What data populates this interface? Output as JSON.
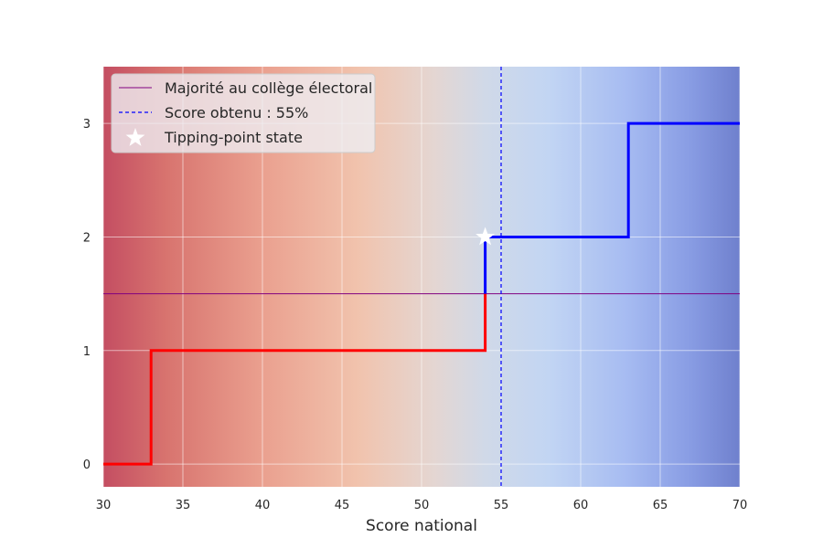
{
  "chart_data": {
    "type": "line",
    "title": "",
    "xlabel": "Score national",
    "ylabel": "",
    "xlim": [
      30,
      70
    ],
    "ylim": [
      -0.2,
      3.5
    ],
    "x_ticks": [
      30,
      35,
      40,
      45,
      50,
      55,
      60,
      65,
      70
    ],
    "y_ticks": [
      0,
      1,
      2,
      3
    ],
    "grid": true,
    "legend_position": "upper-left",
    "background": "diverging red-to-blue gradient along x",
    "series": [
      {
        "style": "step",
        "color": "#ff0000",
        "points": [
          [
            30,
            0
          ],
          [
            33,
            0
          ],
          [
            33,
            1
          ],
          [
            54,
            1
          ],
          [
            54,
            1.5
          ]
        ]
      },
      {
        "style": "step",
        "color": "#0000ff",
        "points": [
          [
            54,
            1.5
          ],
          [
            54,
            2
          ],
          [
            63,
            2
          ],
          [
            63,
            3
          ],
          [
            70,
            3
          ]
        ]
      }
    ],
    "reference_lines": [
      {
        "kind": "horizontal",
        "y": 1.5,
        "color": "#800080",
        "label": "Majorité au collège électoral"
      },
      {
        "kind": "vertical",
        "x": 55,
        "color": "#0000ff",
        "dashed": true,
        "label": "Score obtenu : 55%"
      }
    ],
    "markers": [
      {
        "x": 54,
        "y": 2,
        "symbol": "star",
        "color": "#ffffff",
        "label": "Tipping-point state"
      }
    ],
    "legend": [
      "Majorité au collège électoral",
      "Score obtenu : 55%",
      "Tipping-point state"
    ]
  }
}
